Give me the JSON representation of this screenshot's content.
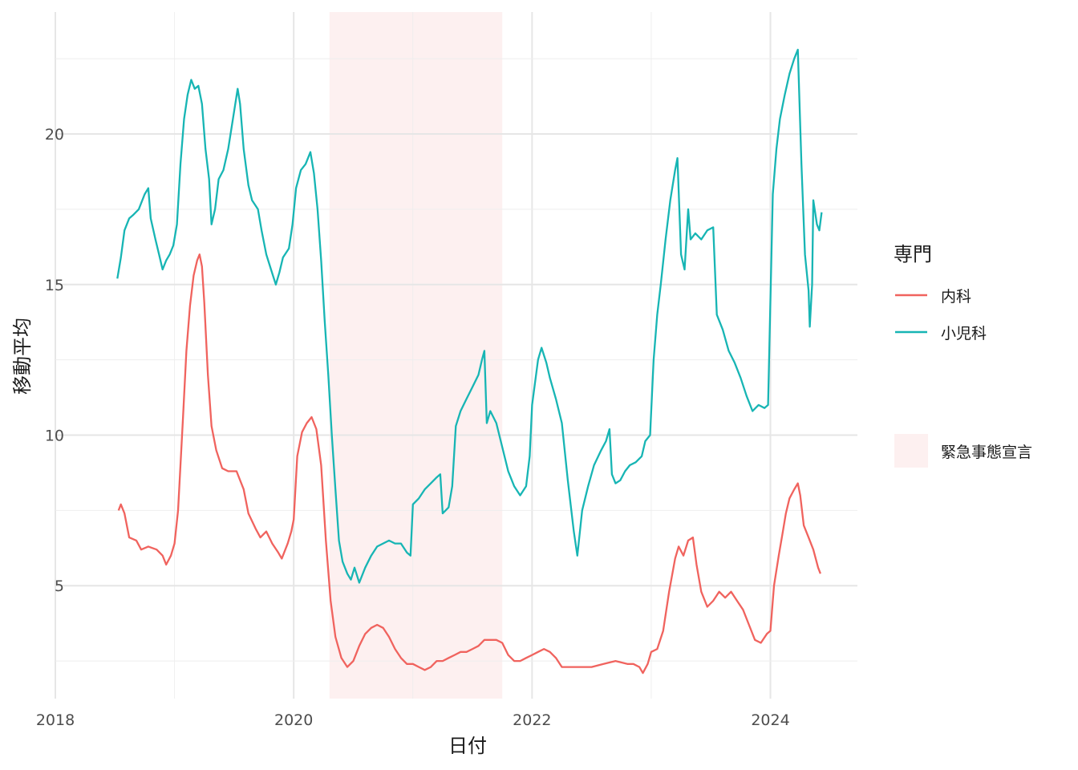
{
  "chart_data": {
    "type": "line",
    "xlabel": "日付",
    "ylabel": "移動平均",
    "x_ticks": [
      "2018",
      "2020",
      "2022",
      "2024"
    ],
    "y_ticks": [
      5,
      10,
      15,
      20
    ],
    "xlim": [
      2018.0,
      2024.73
    ],
    "ylim": [
      1.25,
      24.05
    ],
    "grid": true,
    "legend_position": "right",
    "legend_title": "専門",
    "shaded_region": {
      "label": "緊急事態宣言",
      "x_start": 2020.3,
      "x_end": 2021.75,
      "color": "#fdf0f0"
    },
    "series": [
      {
        "name": "内科",
        "color": "#f0635e",
        "points": [
          [
            2018.53,
            7.5
          ],
          [
            2018.55,
            7.7
          ],
          [
            2018.58,
            7.4
          ],
          [
            2018.62,
            6.6
          ],
          [
            2018.68,
            6.5
          ],
          [
            2018.72,
            6.2
          ],
          [
            2018.78,
            6.3
          ],
          [
            2018.85,
            6.2
          ],
          [
            2018.9,
            6.0
          ],
          [
            2018.93,
            5.7
          ],
          [
            2018.97,
            6.0
          ],
          [
            2019.0,
            6.4
          ],
          [
            2019.03,
            7.5
          ],
          [
            2019.07,
            10.5
          ],
          [
            2019.1,
            12.8
          ],
          [
            2019.13,
            14.3
          ],
          [
            2019.16,
            15.3
          ],
          [
            2019.19,
            15.8
          ],
          [
            2019.21,
            16.0
          ],
          [
            2019.23,
            15.6
          ],
          [
            2019.25,
            14.4
          ],
          [
            2019.28,
            12.0
          ],
          [
            2019.31,
            10.3
          ],
          [
            2019.35,
            9.5
          ],
          [
            2019.4,
            8.9
          ],
          [
            2019.45,
            8.8
          ],
          [
            2019.52,
            8.8
          ],
          [
            2019.58,
            8.2
          ],
          [
            2019.62,
            7.4
          ],
          [
            2019.68,
            6.9
          ],
          [
            2019.72,
            6.6
          ],
          [
            2019.77,
            6.8
          ],
          [
            2019.82,
            6.4
          ],
          [
            2019.87,
            6.1
          ],
          [
            2019.9,
            5.9
          ],
          [
            2019.95,
            6.4
          ],
          [
            2019.98,
            6.8
          ],
          [
            2020.0,
            7.2
          ],
          [
            2020.03,
            9.3
          ],
          [
            2020.07,
            10.1
          ],
          [
            2020.11,
            10.4
          ],
          [
            2020.15,
            10.6
          ],
          [
            2020.19,
            10.2
          ],
          [
            2020.23,
            9.0
          ],
          [
            2020.27,
            6.5
          ],
          [
            2020.31,
            4.5
          ],
          [
            2020.35,
            3.3
          ],
          [
            2020.4,
            2.6
          ],
          [
            2020.45,
            2.3
          ],
          [
            2020.5,
            2.5
          ],
          [
            2020.55,
            3.0
          ],
          [
            2020.6,
            3.4
          ],
          [
            2020.65,
            3.6
          ],
          [
            2020.7,
            3.7
          ],
          [
            2020.75,
            3.6
          ],
          [
            2020.8,
            3.3
          ],
          [
            2020.85,
            2.9
          ],
          [
            2020.9,
            2.6
          ],
          [
            2020.95,
            2.4
          ],
          [
            2021.0,
            2.4
          ],
          [
            2021.05,
            2.3
          ],
          [
            2021.1,
            2.2
          ],
          [
            2021.15,
            2.3
          ],
          [
            2021.2,
            2.5
          ],
          [
            2021.25,
            2.5
          ],
          [
            2021.3,
            2.6
          ],
          [
            2021.35,
            2.7
          ],
          [
            2021.4,
            2.8
          ],
          [
            2021.45,
            2.8
          ],
          [
            2021.5,
            2.9
          ],
          [
            2021.55,
            3.0
          ],
          [
            2021.6,
            3.2
          ],
          [
            2021.65,
            3.2
          ],
          [
            2021.7,
            3.2
          ],
          [
            2021.75,
            3.1
          ],
          [
            2021.8,
            2.7
          ],
          [
            2021.85,
            2.5
          ],
          [
            2021.9,
            2.5
          ],
          [
            2021.95,
            2.6
          ],
          [
            2022.0,
            2.7
          ],
          [
            2022.05,
            2.8
          ],
          [
            2022.1,
            2.9
          ],
          [
            2022.15,
            2.8
          ],
          [
            2022.2,
            2.6
          ],
          [
            2022.25,
            2.3
          ],
          [
            2022.3,
            2.3
          ],
          [
            2022.4,
            2.3
          ],
          [
            2022.5,
            2.3
          ],
          [
            2022.6,
            2.4
          ],
          [
            2022.7,
            2.5
          ],
          [
            2022.8,
            2.4
          ],
          [
            2022.85,
            2.4
          ],
          [
            2022.9,
            2.3
          ],
          [
            2022.93,
            2.1
          ],
          [
            2022.97,
            2.4
          ],
          [
            2023.0,
            2.8
          ],
          [
            2023.05,
            2.9
          ],
          [
            2023.1,
            3.5
          ],
          [
            2023.15,
            4.8
          ],
          [
            2023.2,
            5.9
          ],
          [
            2023.23,
            6.3
          ],
          [
            2023.27,
            6.0
          ],
          [
            2023.31,
            6.5
          ],
          [
            2023.35,
            6.6
          ],
          [
            2023.38,
            5.7
          ],
          [
            2023.42,
            4.8
          ],
          [
            2023.47,
            4.3
          ],
          [
            2023.52,
            4.5
          ],
          [
            2023.57,
            4.8
          ],
          [
            2023.62,
            4.6
          ],
          [
            2023.67,
            4.8
          ],
          [
            2023.72,
            4.5
          ],
          [
            2023.77,
            4.2
          ],
          [
            2023.82,
            3.7
          ],
          [
            2023.87,
            3.2
          ],
          [
            2023.92,
            3.1
          ],
          [
            2023.97,
            3.4
          ],
          [
            2024.0,
            3.5
          ],
          [
            2024.03,
            5.0
          ],
          [
            2024.07,
            6.0
          ],
          [
            2024.1,
            6.7
          ],
          [
            2024.13,
            7.4
          ],
          [
            2024.16,
            7.9
          ],
          [
            2024.2,
            8.2
          ],
          [
            2024.23,
            8.4
          ],
          [
            2024.25,
            8.0
          ],
          [
            2024.28,
            7.0
          ],
          [
            2024.32,
            6.6
          ],
          [
            2024.36,
            6.2
          ],
          [
            2024.4,
            5.6
          ],
          [
            2024.42,
            5.4
          ]
        ]
      },
      {
        "name": "小児科",
        "color": "#17b5b4",
        "points": [
          [
            2018.52,
            15.2
          ],
          [
            2018.55,
            15.9
          ],
          [
            2018.58,
            16.8
          ],
          [
            2018.62,
            17.2
          ],
          [
            2018.65,
            17.3
          ],
          [
            2018.7,
            17.5
          ],
          [
            2018.75,
            18.0
          ],
          [
            2018.78,
            18.2
          ],
          [
            2018.8,
            17.2
          ],
          [
            2018.84,
            16.5
          ],
          [
            2018.87,
            16.0
          ],
          [
            2018.9,
            15.5
          ],
          [
            2018.93,
            15.8
          ],
          [
            2018.96,
            16.0
          ],
          [
            2018.99,
            16.3
          ],
          [
            2019.02,
            17.0
          ],
          [
            2019.05,
            19.0
          ],
          [
            2019.08,
            20.5
          ],
          [
            2019.11,
            21.3
          ],
          [
            2019.14,
            21.8
          ],
          [
            2019.17,
            21.5
          ],
          [
            2019.2,
            21.6
          ],
          [
            2019.23,
            21.0
          ],
          [
            2019.26,
            19.5
          ],
          [
            2019.29,
            18.5
          ],
          [
            2019.31,
            17.0
          ],
          [
            2019.34,
            17.5
          ],
          [
            2019.37,
            18.5
          ],
          [
            2019.41,
            18.8
          ],
          [
            2019.45,
            19.5
          ],
          [
            2019.49,
            20.5
          ],
          [
            2019.53,
            21.5
          ],
          [
            2019.55,
            21.0
          ],
          [
            2019.58,
            19.5
          ],
          [
            2019.62,
            18.3
          ],
          [
            2019.65,
            17.8
          ],
          [
            2019.7,
            17.5
          ],
          [
            2019.73,
            16.8
          ],
          [
            2019.77,
            16.0
          ],
          [
            2019.81,
            15.5
          ],
          [
            2019.85,
            15.0
          ],
          [
            2019.88,
            15.4
          ],
          [
            2019.91,
            15.9
          ],
          [
            2019.96,
            16.2
          ],
          [
            2019.99,
            17.0
          ],
          [
            2020.02,
            18.2
          ],
          [
            2020.06,
            18.8
          ],
          [
            2020.1,
            19.0
          ],
          [
            2020.14,
            19.4
          ],
          [
            2020.17,
            18.7
          ],
          [
            2020.2,
            17.5
          ],
          [
            2020.23,
            15.8
          ],
          [
            2020.26,
            13.8
          ],
          [
            2020.29,
            12.0
          ],
          [
            2020.32,
            10.0
          ],
          [
            2020.35,
            8.2
          ],
          [
            2020.38,
            6.5
          ],
          [
            2020.41,
            5.8
          ],
          [
            2020.45,
            5.4
          ],
          [
            2020.48,
            5.2
          ],
          [
            2020.51,
            5.6
          ],
          [
            2020.55,
            5.1
          ],
          [
            2020.6,
            5.6
          ],
          [
            2020.65,
            6.0
          ],
          [
            2020.7,
            6.3
          ],
          [
            2020.75,
            6.4
          ],
          [
            2020.8,
            6.5
          ],
          [
            2020.85,
            6.4
          ],
          [
            2020.9,
            6.4
          ],
          [
            2020.95,
            6.1
          ],
          [
            2020.98,
            6.0
          ],
          [
            2021.0,
            7.7
          ],
          [
            2021.05,
            7.9
          ],
          [
            2021.1,
            8.2
          ],
          [
            2021.15,
            8.4
          ],
          [
            2021.2,
            8.6
          ],
          [
            2021.23,
            8.7
          ],
          [
            2021.25,
            7.4
          ],
          [
            2021.3,
            7.6
          ],
          [
            2021.33,
            8.3
          ],
          [
            2021.36,
            10.3
          ],
          [
            2021.4,
            10.8
          ],
          [
            2021.45,
            11.2
          ],
          [
            2021.5,
            11.6
          ],
          [
            2021.55,
            12.0
          ],
          [
            2021.58,
            12.5
          ],
          [
            2021.6,
            12.8
          ],
          [
            2021.62,
            10.4
          ],
          [
            2021.65,
            10.8
          ],
          [
            2021.7,
            10.4
          ],
          [
            2021.75,
            9.6
          ],
          [
            2021.8,
            8.8
          ],
          [
            2021.85,
            8.3
          ],
          [
            2021.9,
            8.0
          ],
          [
            2021.95,
            8.3
          ],
          [
            2021.98,
            9.3
          ],
          [
            2022.0,
            11.0
          ],
          [
            2022.05,
            12.5
          ],
          [
            2022.08,
            12.9
          ],
          [
            2022.12,
            12.4
          ],
          [
            2022.15,
            11.9
          ],
          [
            2022.2,
            11.2
          ],
          [
            2022.25,
            10.4
          ],
          [
            2022.3,
            8.5
          ],
          [
            2022.35,
            6.8
          ],
          [
            2022.38,
            6.0
          ],
          [
            2022.42,
            7.5
          ],
          [
            2022.47,
            8.3
          ],
          [
            2022.52,
            9.0
          ],
          [
            2022.58,
            9.5
          ],
          [
            2022.62,
            9.8
          ],
          [
            2022.65,
            10.2
          ],
          [
            2022.67,
            8.7
          ],
          [
            2022.7,
            8.4
          ],
          [
            2022.74,
            8.5
          ],
          [
            2022.78,
            8.8
          ],
          [
            2022.82,
            9.0
          ],
          [
            2022.87,
            9.1
          ],
          [
            2022.92,
            9.3
          ],
          [
            2022.95,
            9.8
          ],
          [
            2022.99,
            10.0
          ],
          [
            2023.02,
            12.5
          ],
          [
            2023.05,
            14.0
          ],
          [
            2023.08,
            15.0
          ],
          [
            2023.12,
            16.5
          ],
          [
            2023.16,
            17.8
          ],
          [
            2023.2,
            18.8
          ],
          [
            2023.22,
            19.2
          ],
          [
            2023.25,
            16.0
          ],
          [
            2023.28,
            15.5
          ],
          [
            2023.31,
            17.5
          ],
          [
            2023.33,
            16.5
          ],
          [
            2023.37,
            16.7
          ],
          [
            2023.42,
            16.5
          ],
          [
            2023.47,
            16.8
          ],
          [
            2023.52,
            16.9
          ],
          [
            2023.55,
            14.0
          ],
          [
            2023.6,
            13.5
          ],
          [
            2023.65,
            12.8
          ],
          [
            2023.7,
            12.4
          ],
          [
            2023.75,
            11.9
          ],
          [
            2023.8,
            11.3
          ],
          [
            2023.85,
            10.8
          ],
          [
            2023.9,
            11.0
          ],
          [
            2023.95,
            10.9
          ],
          [
            2023.98,
            11.0
          ],
          [
            2024.02,
            18.0
          ],
          [
            2024.05,
            19.5
          ],
          [
            2024.08,
            20.5
          ],
          [
            2024.12,
            21.3
          ],
          [
            2024.16,
            22.0
          ],
          [
            2024.2,
            22.5
          ],
          [
            2024.23,
            22.8
          ],
          [
            2024.26,
            19.0
          ],
          [
            2024.29,
            16.0
          ],
          [
            2024.32,
            14.8
          ],
          [
            2024.33,
            13.6
          ],
          [
            2024.35,
            15.0
          ],
          [
            2024.36,
            17.8
          ],
          [
            2024.39,
            17.0
          ],
          [
            2024.41,
            16.8
          ],
          [
            2024.43,
            17.4
          ]
        ]
      }
    ]
  }
}
